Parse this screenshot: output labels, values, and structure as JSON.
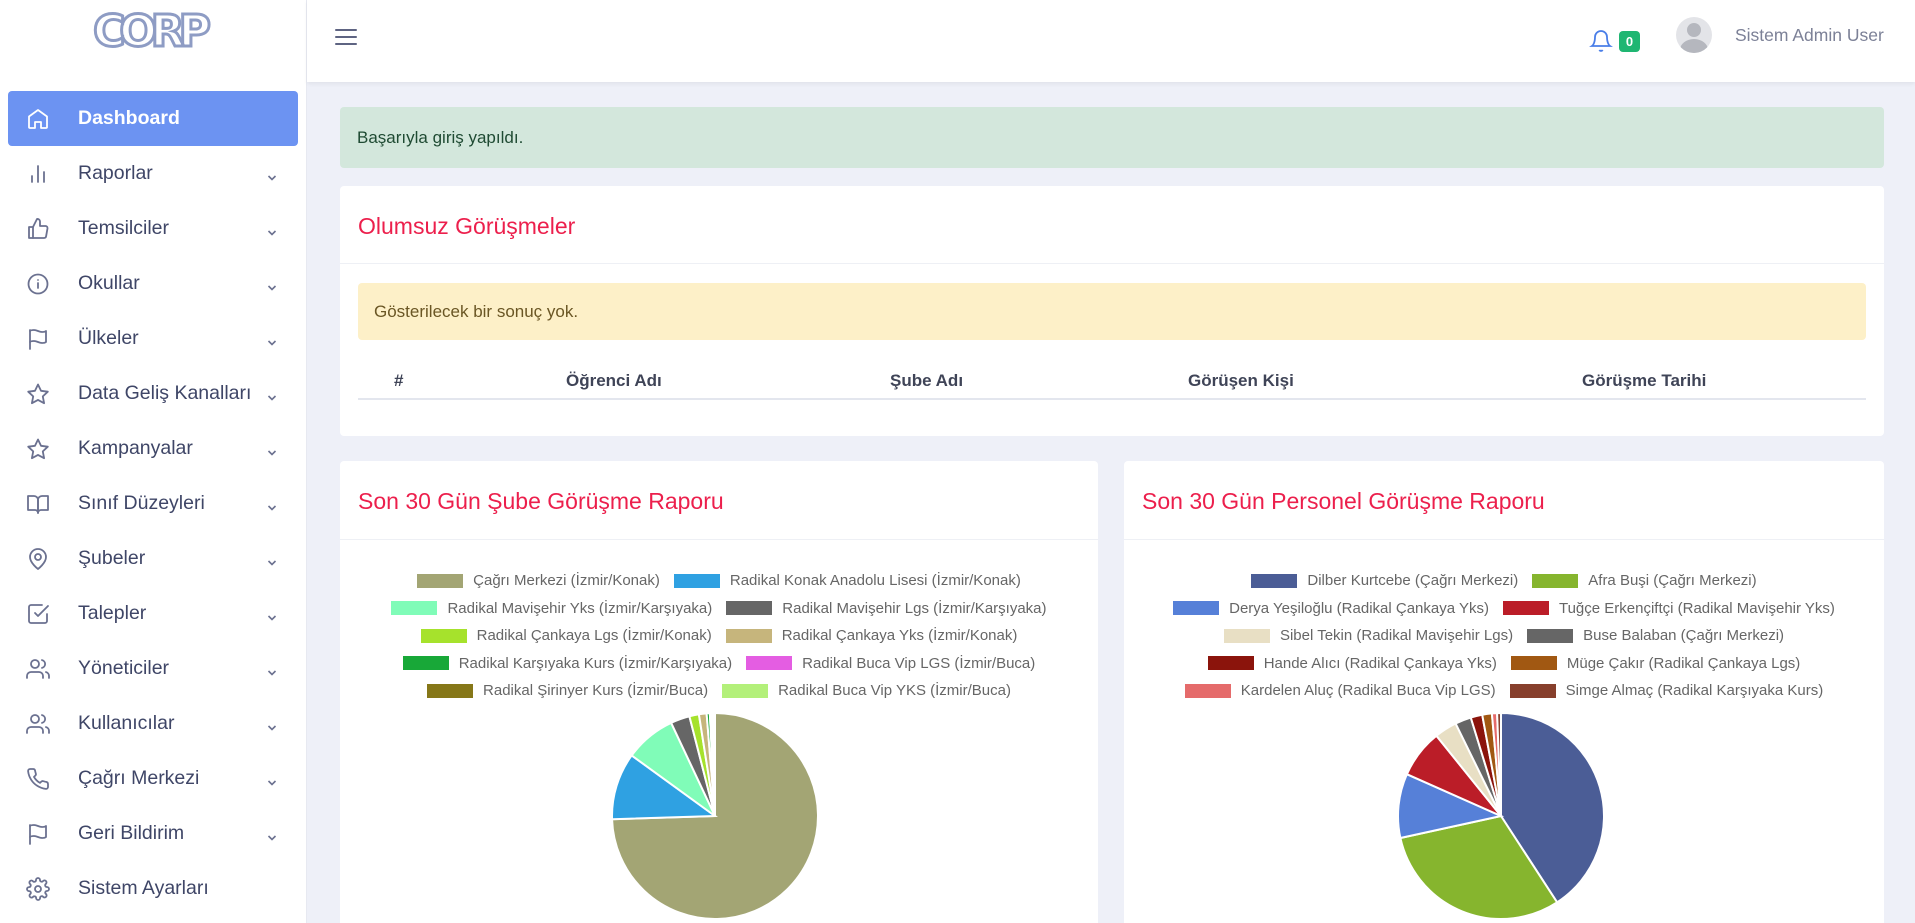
{
  "sidebar": {
    "logo_text": "CORP",
    "items": [
      {
        "label": "Dashboard",
        "icon": "home-icon",
        "active": true,
        "has_chevron": false
      },
      {
        "label": "Raporlar",
        "icon": "bar-chart-icon",
        "has_chevron": true
      },
      {
        "label": "Temsilciler",
        "icon": "thumbs-up-icon",
        "has_chevron": true
      },
      {
        "label": "Okullar",
        "icon": "info-icon",
        "has_chevron": true
      },
      {
        "label": "Ülkeler",
        "icon": "flag-icon",
        "has_chevron": true
      },
      {
        "label": "Data Geliş Kanalları",
        "icon": "star-icon",
        "has_chevron": true
      },
      {
        "label": "Kampanyalar",
        "icon": "star-icon",
        "has_chevron": true
      },
      {
        "label": "Sınıf Düzeyleri",
        "icon": "book-icon",
        "has_chevron": true
      },
      {
        "label": "Şubeler",
        "icon": "map-pin-icon",
        "has_chevron": true
      },
      {
        "label": "Talepler",
        "icon": "check-square-icon",
        "has_chevron": true
      },
      {
        "label": "Yöneticiler",
        "icon": "users-icon",
        "has_chevron": true
      },
      {
        "label": "Kullanıcılar",
        "icon": "users-icon",
        "has_chevron": true
      },
      {
        "label": "Çağrı Merkezi",
        "icon": "phone-icon",
        "has_chevron": true
      },
      {
        "label": "Geri Bildirim",
        "icon": "flag-icon",
        "has_chevron": true
      },
      {
        "label": "Sistem Ayarları",
        "icon": "gear-icon",
        "has_chevron": false
      }
    ]
  },
  "topbar": {
    "notification_count": "0",
    "username": "Sistem Admin User"
  },
  "alert_success": "Başarıyla giriş yapıldı.",
  "negative_calls": {
    "title": "Olumsuz Görüşmeler",
    "empty_message": "Gösterilecek bir sonuç yok.",
    "columns": [
      "#",
      "Öğrenci Adı",
      "Şube Adı",
      "Görüşen Kişi",
      "Görüşme Tarihi"
    ]
  },
  "branch_report": {
    "title": "Son 30 Gün Şube Görüşme Raporu",
    "chart_data": {
      "type": "pie",
      "legend_position": "top",
      "categories": [
        "Çağrı Merkezi (İzmir/Konak)",
        "Radikal Konak Anadolu Lisesi (İzmir/Konak)",
        "Radikal Mavişehir Yks (İzmir/Karşıyaka)",
        "Radikal Mavişehir Lgs (İzmir/Karşıyaka)",
        "Radikal Çankaya Lgs (İzmir/Konak)",
        "Radikal Çankaya Yks (İzmir/Konak)",
        "Radikal Karşıyaka Kurs (İzmir/Karşıyaka)",
        "Radikal Buca Vip LGS (İzmir/Buca)",
        "Radikal Şirinyer Kurs (İzmir/Buca)",
        "Radikal Buca Vip YKS (İzmir/Buca)"
      ],
      "values": [
        74.5,
        10.5,
        8.0,
        3.0,
        1.5,
        1.2,
        0.5,
        0.3,
        0.2,
        0.3
      ],
      "colors": [
        "#a3a574",
        "#2fa1e2",
        "#80fcb8",
        "#666666",
        "#a6e22c",
        "#c6b57c",
        "#18a838",
        "#e45de2",
        "#867718",
        "#b3f07a"
      ]
    }
  },
  "staff_report": {
    "title": "Son 30 Gün Personel Görüşme Raporu",
    "chart_data": {
      "type": "pie",
      "legend_position": "top",
      "categories": [
        "Dilber Kurtcebe (Çağrı Merkezi)",
        "Afra Buşi (Çağrı Merkezi)",
        "Derya Yeşiloğlu (Radikal Çankaya Yks)",
        "Tuğçe Erkençiftçi (Radikal Mavişehir Yks)",
        "Sibel Tekin (Radikal Mavişehir Lgs)",
        "Buse Balaban (Çağrı Merkezi)",
        "Hande Alıcı (Radikal Çankaya Yks)",
        "Müge Çakır (Radikal Çankaya Lgs)",
        "Kardelen Aluç (Radikal Buca Vip LGS)",
        "Simge Almaç (Radikal Karşıyaka Kurs)"
      ],
      "values": [
        40.5,
        30.5,
        10.0,
        7.5,
        3.5,
        2.5,
        1.8,
        1.5,
        0.8,
        0.6
      ],
      "colors": [
        "#4b5d96",
        "#86b52e",
        "#5680d8",
        "#bb1d28",
        "#e8dfc4",
        "#666666",
        "#8b140c",
        "#a15812",
        "#e56b6b",
        "#873f2c"
      ]
    }
  }
}
